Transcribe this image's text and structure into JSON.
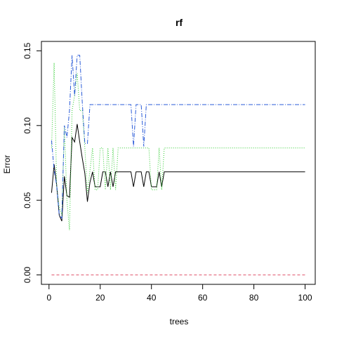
{
  "chart_data": {
    "type": "line",
    "title": "rf",
    "xlabel": "trees",
    "ylabel": "Error",
    "xlim": [
      1,
      100
    ],
    "ylim": [
      0.0,
      0.15
    ],
    "xticks": [
      0,
      20,
      40,
      60,
      80,
      100
    ],
    "xtick_labels": [
      "0",
      "20",
      "40",
      "60",
      "80",
      "100"
    ],
    "yticks": [
      0.0,
      0.05,
      0.1,
      0.15
    ],
    "ytick_labels": [
      "0.00",
      "0.05",
      "0.10",
      "0.15"
    ],
    "grid": false,
    "legend": "none",
    "series": [
      {
        "color": "#000000",
        "dash": "",
        "segments": [
          [
            1,
            0.055
          ],
          [
            2,
            0.074
          ],
          [
            3,
            0.06
          ],
          [
            4,
            0.04
          ],
          [
            5,
            0.036
          ],
          [
            6,
            0.066
          ],
          [
            7,
            0.053
          ],
          [
            8,
            0.052
          ],
          [
            9,
            0.092
          ],
          [
            10,
            0.089
          ],
          [
            11,
            0.101
          ],
          [
            12,
            0.089
          ],
          [
            13,
            0.078
          ],
          [
            14,
            0.068
          ],
          [
            15,
            0.049
          ],
          [
            16,
            0.062
          ],
          [
            17,
            0.069
          ],
          [
            18,
            0.059
          ],
          [
            19,
            0.059
          ],
          [
            20,
            0.059
          ],
          [
            21,
            0.069
          ],
          [
            22,
            0.069
          ],
          [
            23,
            0.059
          ],
          [
            24,
            0.069
          ],
          [
            25,
            0.059
          ],
          [
            26,
            0.069
          ],
          [
            27,
            0.069
          ],
          [
            28,
            0.069
          ],
          [
            29,
            0.069
          ],
          [
            30,
            0.069
          ],
          [
            31,
            0.069
          ],
          [
            32,
            0.069
          ],
          [
            33,
            0.059
          ],
          [
            34,
            0.069
          ],
          [
            35,
            0.069
          ],
          [
            36,
            0.069
          ],
          [
            37,
            0.059
          ],
          [
            38,
            0.069
          ],
          [
            39,
            0.069
          ],
          [
            40,
            0.059
          ],
          [
            41,
            0.059
          ],
          [
            42,
            0.059
          ],
          [
            43,
            0.069
          ],
          [
            44,
            0.059
          ],
          [
            45,
            0.069
          ],
          [
            50,
            0.069
          ],
          [
            60,
            0.069
          ],
          [
            70,
            0.069
          ],
          [
            80,
            0.069
          ],
          [
            90,
            0.069
          ],
          [
            100,
            0.069
          ]
        ]
      },
      {
        "color": "#df536b",
        "dash": "4,3",
        "segments": [
          [
            1,
            0.0
          ],
          [
            100,
            0.0
          ]
        ]
      },
      {
        "color": "#2fcc2f",
        "dash": "1,2",
        "segments": [
          [
            1,
            0.085
          ],
          [
            2,
            0.142
          ],
          [
            3,
            0.06
          ],
          [
            4,
            0.045
          ],
          [
            5,
            0.04
          ],
          [
            6,
            0.1
          ],
          [
            7,
            0.05
          ],
          [
            8,
            0.03
          ],
          [
            9,
            0.11
          ],
          [
            10,
            0.12
          ],
          [
            11,
            0.135
          ],
          [
            12,
            0.11
          ],
          [
            13,
            0.11
          ],
          [
            14,
            0.085
          ],
          [
            15,
            0.055
          ],
          [
            16,
            0.07
          ],
          [
            17,
            0.085
          ],
          [
            18,
            0.057
          ],
          [
            19,
            0.057
          ],
          [
            20,
            0.085
          ],
          [
            21,
            0.085
          ],
          [
            22,
            0.057
          ],
          [
            23,
            0.085
          ],
          [
            24,
            0.057
          ],
          [
            25,
            0.085
          ],
          [
            26,
            0.057
          ],
          [
            27,
            0.085
          ],
          [
            28,
            0.085
          ],
          [
            29,
            0.085
          ],
          [
            30,
            0.085
          ],
          [
            31,
            0.085
          ],
          [
            32,
            0.085
          ],
          [
            33,
            0.085
          ],
          [
            34,
            0.085
          ],
          [
            35,
            0.085
          ],
          [
            36,
            0.085
          ],
          [
            37,
            0.085
          ],
          [
            38,
            0.085
          ],
          [
            39,
            0.085
          ],
          [
            40,
            0.057
          ],
          [
            41,
            0.057
          ],
          [
            42,
            0.057
          ],
          [
            43,
            0.085
          ],
          [
            44,
            0.057
          ],
          [
            45,
            0.085
          ],
          [
            50,
            0.085
          ],
          [
            60,
            0.085
          ],
          [
            70,
            0.085
          ],
          [
            80,
            0.085
          ],
          [
            90,
            0.085
          ],
          [
            100,
            0.085
          ]
        ]
      },
      {
        "color": "#2a5bd8",
        "dash": "6,2,1,2",
        "segments": [
          [
            1,
            0.09
          ],
          [
            2,
            0.07
          ],
          [
            3,
            0.06
          ],
          [
            4,
            0.04
          ],
          [
            5,
            0.038
          ],
          [
            6,
            0.1
          ],
          [
            7,
            0.092
          ],
          [
            8,
            0.11
          ],
          [
            9,
            0.147
          ],
          [
            10,
            0.12
          ],
          [
            11,
            0.147
          ],
          [
            12,
            0.147
          ],
          [
            13,
            0.115
          ],
          [
            14,
            0.088
          ],
          [
            15,
            0.088
          ],
          [
            16,
            0.114
          ],
          [
            20,
            0.114
          ],
          [
            25,
            0.114
          ],
          [
            30,
            0.114
          ],
          [
            32,
            0.114
          ],
          [
            33,
            0.086
          ],
          [
            34,
            0.114
          ],
          [
            35,
            0.114
          ],
          [
            36,
            0.114
          ],
          [
            37,
            0.086
          ],
          [
            38,
            0.114
          ],
          [
            40,
            0.114
          ],
          [
            50,
            0.114
          ],
          [
            60,
            0.114
          ],
          [
            70,
            0.114
          ],
          [
            80,
            0.114
          ],
          [
            90,
            0.114
          ],
          [
            100,
            0.114
          ]
        ]
      }
    ]
  }
}
